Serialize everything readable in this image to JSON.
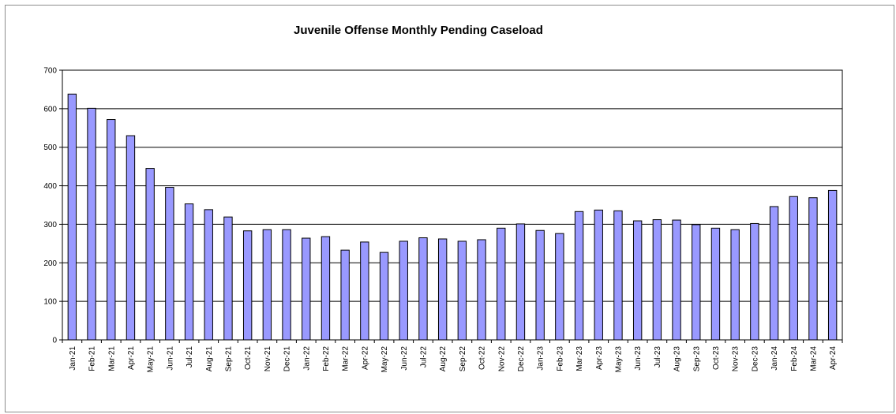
{
  "chart_data": {
    "type": "bar",
    "title": "Juvenile Offense Monthly Pending Caseload",
    "xlabel": "",
    "ylabel": "",
    "ylim": [
      0,
      700
    ],
    "yticks": [
      0,
      100,
      200,
      300,
      400,
      500,
      600,
      700
    ],
    "grid": true,
    "legend": "none",
    "colors": {
      "bar_fill": "#9999ff",
      "bar_stroke": "#000000",
      "grid": "#000000"
    },
    "categories": [
      "Jan-21",
      "Feb-21",
      "Mar-21",
      "Apr-21",
      "May-21",
      "Jun-21",
      "Jul-21",
      "Aug-21",
      "Sep-21",
      "Oct-21",
      "Nov-21",
      "Dec-21",
      "Jan-22",
      "Feb-22",
      "Mar-22",
      "Apr-22",
      "May-22",
      "Jun-22",
      "Jul-22",
      "Aug-22",
      "Sep-22",
      "Oct-22",
      "Nov-22",
      "Dec-22",
      "Jan-23",
      "Feb-23",
      "Mar-23",
      "Apr-23",
      "May-23",
      "Jun-23",
      "Jul-23",
      "Aug-23",
      "Sep-23",
      "Oct-23",
      "Nov-23",
      "Dec-23",
      "Jan-24",
      "Feb-24",
      "Mar-24",
      "Apr-24"
    ],
    "values": [
      638,
      601,
      572,
      530,
      445,
      396,
      353,
      338,
      319,
      283,
      286,
      286,
      264,
      268,
      233,
      254,
      227,
      256,
      265,
      262,
      256,
      260,
      290,
      301,
      284,
      276,
      333,
      337,
      335,
      309,
      312,
      311,
      299,
      290,
      286,
      302,
      346,
      372,
      369,
      388
    ]
  }
}
